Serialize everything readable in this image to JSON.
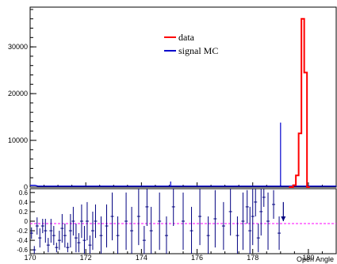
{
  "chart_data": [
    {
      "type": "line",
      "panel": "main",
      "xlim": [
        170,
        181
      ],
      "ylim": [
        0,
        38500
      ],
      "x_ticks": [
        170,
        172,
        174,
        176,
        178,
        180
      ],
      "y_ticks": [
        {
          "value": 0,
          "label": "0"
        },
        {
          "value": 10000,
          "label": "10000"
        },
        {
          "value": 20000,
          "label": "20000"
        },
        {
          "value": 30000,
          "label": "30000"
        }
      ],
      "legend": {
        "placement": "top-center",
        "entries": [
          {
            "label": "data",
            "color": "#ff0000"
          },
          {
            "label": "signal MC",
            "color": "#0000cc"
          }
        ]
      },
      "series": [
        {
          "name": "data",
          "color": "#ff0000",
          "style": "step",
          "points": [
            [
              179.3,
              0
            ],
            [
              179.45,
              400
            ],
            [
              179.55,
              2500
            ],
            [
              179.65,
              11500
            ],
            [
              179.75,
              36000
            ],
            [
              179.85,
              24500
            ],
            [
              179.95,
              0
            ],
            [
              180.05,
              0
            ]
          ]
        },
        {
          "name": "signal MC",
          "color": "#0000cc",
          "style": "step",
          "baseline": 200,
          "spikes": [
            {
              "x": 175.05,
              "y": 1200
            },
            {
              "x": 179.0,
              "y": 13800
            }
          ]
        }
      ]
    },
    {
      "type": "scatter",
      "panel": "residual",
      "xlim": [
        170,
        181
      ],
      "ylim": [
        -0.68,
        0.68
      ],
      "xlabel": "Open Angle",
      "x_ticks": [
        {
          "value": 170,
          "label": "170"
        },
        {
          "value": 172,
          "label": "172"
        },
        {
          "value": 174,
          "label": "174"
        },
        {
          "value": 176,
          "label": "176"
        },
        {
          "value": 178,
          "label": "178"
        },
        {
          "value": 180,
          "label": "180"
        }
      ],
      "y_ticks": [
        {
          "value": 0.6,
          "label": "0.6"
        },
        {
          "value": 0.4,
          "label": "0.4"
        },
        {
          "value": 0.2,
          "label": "0.2"
        },
        {
          "value": 0,
          "label": "0"
        },
        {
          "value": -0.2,
          "label": "-0.2"
        },
        {
          "value": -0.4,
          "label": "-0.4"
        },
        {
          "value": -0.6,
          "label": "-0.6"
        }
      ],
      "reference_line": {
        "y": -0.05,
        "color": "#ff00ff",
        "style": "dashed"
      },
      "marker_color": "#000080",
      "points": [
        {
          "x": 170.05,
          "y": -0.25,
          "err": 0.12
        },
        {
          "x": 170.15,
          "y": -0.6,
          "err": 0.08
        },
        {
          "x": 170.25,
          "y": -0.1,
          "err": 0.18
        },
        {
          "x": 170.35,
          "y": -0.35,
          "err": 0.2
        },
        {
          "x": 170.45,
          "y": -0.1,
          "err": 0.15
        },
        {
          "x": 170.55,
          "y": -0.2,
          "err": 0.25
        },
        {
          "x": 170.65,
          "y": -0.5,
          "err": 0.15
        },
        {
          "x": 170.75,
          "y": -0.2,
          "err": 0.25
        },
        {
          "x": 170.85,
          "y": -0.3,
          "err": 0.2
        },
        {
          "x": 170.95,
          "y": -0.55,
          "err": 0.1
        },
        {
          "x": 171.05,
          "y": -0.4,
          "err": 0.2
        },
        {
          "x": 171.15,
          "y": -0.15,
          "err": 0.3
        },
        {
          "x": 171.25,
          "y": -0.3,
          "err": 0.25
        },
        {
          "x": 171.35,
          "y": -0.55,
          "err": 0.1
        },
        {
          "x": 171.45,
          "y": -0.2,
          "err": 0.35
        },
        {
          "x": 171.55,
          "y": 0.0,
          "err": 0.3
        },
        {
          "x": 171.65,
          "y": -0.35,
          "err": 0.3
        },
        {
          "x": 171.75,
          "y": -0.45,
          "err": 0.2
        },
        {
          "x": 171.85,
          "y": 0.0,
          "err": 0.35
        },
        {
          "x": 171.95,
          "y": -0.4,
          "err": 0.3
        },
        {
          "x": 172.05,
          "y": 0.0,
          "err": 0.4
        },
        {
          "x": 172.15,
          "y": -0.5,
          "err": 0.2
        },
        {
          "x": 172.25,
          "y": -0.2,
          "err": 0.4
        },
        {
          "x": 172.35,
          "y": 0.0,
          "err": 0.35
        },
        {
          "x": 172.55,
          "y": -0.3,
          "err": 0.4
        },
        {
          "x": 172.75,
          "y": -0.1,
          "err": 0.45
        },
        {
          "x": 172.95,
          "y": 0.1,
          "err": 0.5
        },
        {
          "x": 173.15,
          "y": -0.3,
          "err": 0.4
        },
        {
          "x": 173.45,
          "y": 0.0,
          "err": 0.6
        },
        {
          "x": 173.65,
          "y": -0.2,
          "err": 0.5
        },
        {
          "x": 173.9,
          "y": 0.1,
          "err": 0.6
        },
        {
          "x": 174.1,
          "y": -0.4,
          "err": 0.3
        },
        {
          "x": 174.2,
          "y": 0.3,
          "err": 0.4
        },
        {
          "x": 174.35,
          "y": -0.2,
          "err": 0.5
        },
        {
          "x": 174.65,
          "y": 0.0,
          "err": 0.6
        },
        {
          "x": 174.9,
          "y": -0.3,
          "err": 0.4
        },
        {
          "x": 175.15,
          "y": 0.3,
          "err": 0.4
        },
        {
          "x": 175.5,
          "y": 0.0,
          "err": 0.6
        },
        {
          "x": 175.8,
          "y": -0.2,
          "err": 0.5
        },
        {
          "x": 176.1,
          "y": 0.1,
          "err": 0.6
        },
        {
          "x": 176.4,
          "y": -0.3,
          "err": 0.4
        },
        {
          "x": 176.65,
          "y": 0.05,
          "err": 0.6
        },
        {
          "x": 176.95,
          "y": -0.1,
          "err": 0.5
        },
        {
          "x": 177.2,
          "y": 0.2,
          "err": 0.5
        },
        {
          "x": 177.45,
          "y": -0.3,
          "err": 0.4
        },
        {
          "x": 177.65,
          "y": 0.0,
          "err": 0.6
        },
        {
          "x": 177.8,
          "y": 0.3,
          "err": 0.35
        },
        {
          "x": 177.9,
          "y": -0.2,
          "err": 0.5
        },
        {
          "x": 178.0,
          "y": 0.1,
          "err": 0.6
        },
        {
          "x": 178.1,
          "y": 0.4,
          "err": 0.3
        },
        {
          "x": 178.2,
          "y": -0.35,
          "err": 0.3
        },
        {
          "x": 178.3,
          "y": 0.2,
          "err": 0.5
        },
        {
          "x": 178.4,
          "y": 0.5,
          "err": 0.2
        },
        {
          "x": 178.55,
          "y": 0.0,
          "err": 0.6
        },
        {
          "x": 178.75,
          "y": 0.35,
          "err": 0.3
        },
        {
          "x": 178.95,
          "y": -0.25,
          "err": 0.35
        }
      ],
      "arrow_marker": {
        "x": 179.1,
        "y_from": 0.4,
        "y_to": 0.0
      }
    }
  ]
}
